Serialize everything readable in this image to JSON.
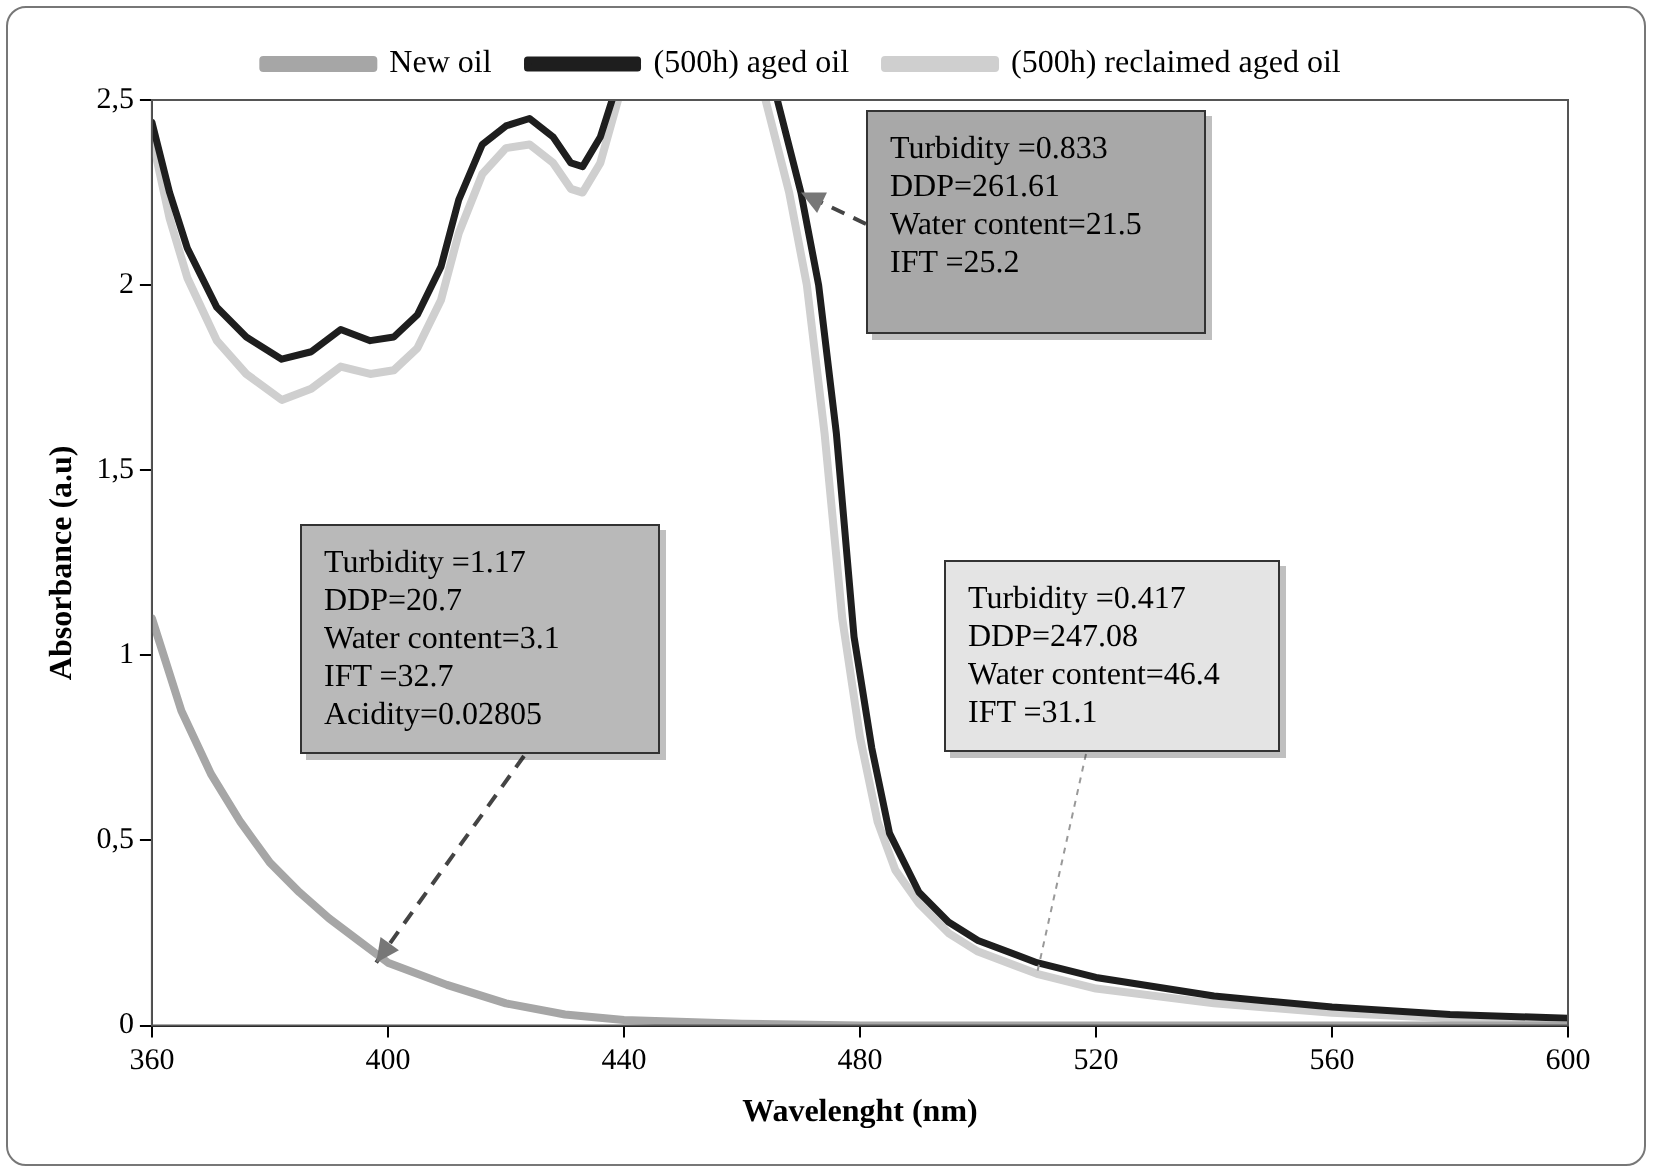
{
  "chart_data": {
    "type": "line",
    "xlabel": "Wavelenght (nm)",
    "ylabel": "Absorbance (a.u)",
    "legend": "top",
    "grid": false,
    "marker": "none",
    "line_style": "solid",
    "xlim": [
      360,
      600
    ],
    "xticks": [
      360,
      400,
      440,
      480,
      520,
      560,
      600
    ],
    "ylim": [
      0,
      2.5
    ],
    "yticks": [
      0,
      {
        "value": 0.5,
        "label": "0,5"
      },
      1,
      {
        "value": 1.5,
        "label": "1,5"
      },
      2,
      {
        "value": 2.5,
        "label": "2,5"
      }
    ],
    "series": [
      {
        "name": "New oil",
        "color": "#a6a6a6",
        "x": [
          360,
          365,
          370,
          375,
          380,
          385,
          390,
          395,
          400,
          410,
          420,
          430,
          440,
          460,
          480,
          600
        ],
        "values": [
          1.1,
          0.85,
          0.68,
          0.55,
          0.44,
          0.36,
          0.29,
          0.23,
          0.17,
          0.11,
          0.06,
          0.03,
          0.015,
          0.005,
          0,
          0
        ]
      },
      {
        "name": "(500h) aged oil",
        "color": "#1e1e1e",
        "x": [
          360,
          363,
          366,
          371,
          376,
          382,
          387,
          392,
          397,
          401,
          405,
          409,
          412,
          416,
          420,
          424,
          428,
          431,
          433,
          436,
          438,
          450,
          466,
          470,
          473,
          476,
          479,
          482,
          485,
          490,
          495,
          500,
          510,
          520,
          540,
          560,
          580,
          600
        ],
        "values": [
          2.44,
          2.25,
          2.1,
          1.94,
          1.86,
          1.8,
          1.82,
          1.88,
          1.85,
          1.86,
          1.92,
          2.05,
          2.23,
          2.38,
          2.43,
          2.45,
          2.4,
          2.33,
          2.32,
          2.4,
          2.5,
          null,
          2.5,
          2.25,
          2.0,
          1.6,
          1.05,
          0.75,
          0.52,
          0.36,
          0.28,
          0.23,
          0.17,
          0.13,
          0.08,
          0.05,
          0.03,
          0.02
        ]
      },
      {
        "name": "(500h) reclaimed aged oil",
        "color": "#cfcfcf",
        "x": [
          360,
          363,
          366,
          371,
          376,
          382,
          387,
          392,
          397,
          401,
          405,
          409,
          412,
          416,
          420,
          424,
          428,
          431,
          433,
          436,
          439,
          450,
          464,
          468,
          471,
          474,
          477,
          480,
          483,
          486,
          490,
          495,
          500,
          510,
          520,
          540,
          560,
          580,
          600
        ],
        "values": [
          2.4,
          2.18,
          2.02,
          1.85,
          1.76,
          1.69,
          1.72,
          1.78,
          1.76,
          1.77,
          1.83,
          1.96,
          2.14,
          2.3,
          2.37,
          2.38,
          2.33,
          2.26,
          2.25,
          2.33,
          2.5,
          null,
          2.5,
          2.25,
          2.0,
          1.6,
          1.1,
          0.78,
          0.55,
          0.42,
          0.33,
          0.25,
          0.2,
          0.14,
          0.1,
          0.06,
          0.035,
          0.02,
          0.01
        ]
      }
    ],
    "annotations": [
      {
        "text": "Turbidity =0.833\nDDP=261.61\nWater content=21.5\nIFT =25.2",
        "x": 470,
        "y": 2.25
      },
      {
        "text": "Turbidity =1.17\nDDP=20.7\nWater content=3.1\nIFT =32.7\nAcidity=0.02805",
        "x": 398,
        "y": 0.17
      },
      {
        "text": "Turbidity =0.417\nDDP=247.08\nWater content=46.4\nIFT =31.1",
        "x": 510,
        "y": 0.14
      }
    ]
  }
}
